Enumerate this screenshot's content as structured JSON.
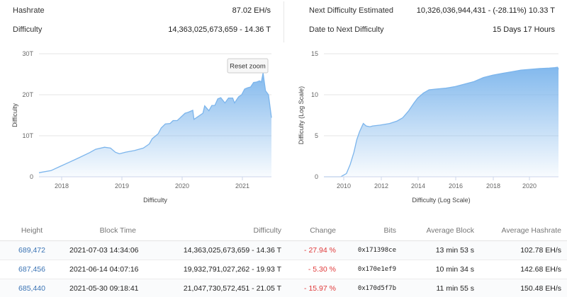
{
  "stats": {
    "hashrate_label": "Hashrate",
    "hashrate_value": "87.02 EH/s",
    "difficulty_label": "Difficulty",
    "difficulty_value": "14,363,025,673,659 - 14.36 T",
    "next_diff_label": "Next Difficulty Estimated",
    "next_diff_value": "10,326,036,944,431 - (-28.11%) 10.33 T",
    "date_next_label": "Date to Next Difficulty",
    "date_next_value": "15 Days 17 Hours"
  },
  "left_chart": {
    "reset_zoom_label": "Reset zoom"
  },
  "chart_data": [
    {
      "type": "area",
      "title": "",
      "xlabel": "Difficulty",
      "ylabel": "Difficulty",
      "x_ticks": [
        "2018",
        "2019",
        "2020",
        "2021"
      ],
      "y_ticks": [
        "0",
        "10T",
        "20T",
        "30T"
      ],
      "ylim": [
        0,
        30
      ],
      "xlim": [
        2017.6,
        2021.5
      ],
      "grid": true,
      "series": [
        {
          "x": [
            2017.6,
            2017.8,
            2017.95,
            2018.1,
            2018.25,
            2018.45,
            2018.55,
            2018.7,
            2018.8,
            2018.88,
            2018.95,
            2019.05,
            2019.2,
            2019.35,
            2019.45,
            2019.5,
            2019.6,
            2019.65,
            2019.72,
            2019.8,
            2019.85,
            2019.92,
            2020.05,
            2020.1,
            2020.18,
            2020.2,
            2020.28,
            2020.35,
            2020.38,
            2020.45,
            2020.5,
            2020.55,
            2020.6,
            2020.65,
            2020.72,
            2020.78,
            2020.85,
            2020.88,
            2020.95,
            2021.0,
            2021.05,
            2021.1,
            2021.15,
            2021.2,
            2021.25,
            2021.3,
            2021.33,
            2021.36,
            2021.4,
            2021.45,
            2021.5
          ],
          "y": [
            1.0,
            1.5,
            2.5,
            3.5,
            4.5,
            5.9,
            6.7,
            7.2,
            7.0,
            6.0,
            5.6,
            6.0,
            6.4,
            7.0,
            8.0,
            9.3,
            10.5,
            11.9,
            12.9,
            13.0,
            13.7,
            13.7,
            15.5,
            15.7,
            16.2,
            14.0,
            14.8,
            15.5,
            17.3,
            16.1,
            17.4,
            17.4,
            19.0,
            19.3,
            18.0,
            19.2,
            19.2,
            18.0,
            19.5,
            20.0,
            21.4,
            21.7,
            21.9,
            23.0,
            23.1,
            23.4,
            23.1,
            25.3,
            21.0,
            20.0,
            14.4
          ]
        }
      ]
    },
    {
      "type": "area",
      "title": "",
      "xlabel": "Difficulty (Log Scale)",
      "ylabel": "Difficulty (Log Scale)",
      "x_ticks": [
        "2010",
        "2012",
        "2014",
        "2016",
        "2018",
        "2020"
      ],
      "y_ticks": [
        "0",
        "5",
        "10",
        "15"
      ],
      "ylim": [
        0,
        15
      ],
      "xlim": [
        2009.0,
        2021.5
      ],
      "grid": true,
      "series": [
        {
          "x": [
            2009.0,
            2009.9,
            2010.2,
            2010.4,
            2010.6,
            2010.75,
            2010.9,
            2011.1,
            2011.25,
            2011.45,
            2011.6,
            2012.0,
            2012.5,
            2012.9,
            2013.2,
            2013.5,
            2013.8,
            2014.0,
            2014.3,
            2014.6,
            2015.0,
            2015.5,
            2016.0,
            2016.5,
            2017.0,
            2017.5,
            2018.0,
            2018.5,
            2019.0,
            2019.5,
            2020.0,
            2020.5,
            2021.0,
            2021.3,
            2021.45,
            2021.5
          ],
          "y": [
            0.0,
            0.0,
            0.4,
            1.5,
            3.0,
            4.5,
            5.5,
            6.5,
            6.2,
            6.1,
            6.2,
            6.3,
            6.5,
            6.8,
            7.2,
            8.0,
            9.0,
            9.6,
            10.2,
            10.6,
            10.7,
            10.8,
            11.0,
            11.3,
            11.6,
            12.1,
            12.4,
            12.6,
            12.8,
            13.0,
            13.1,
            13.2,
            13.25,
            13.3,
            13.35,
            13.1
          ]
        }
      ]
    }
  ],
  "table": {
    "headers": [
      "Height",
      "Block Time",
      "Difficulty",
      "Change",
      "Bits",
      "Average Block",
      "Average Hashrate"
    ],
    "rows": [
      [
        "689,472",
        "2021-07-03 14:34:06",
        "14,363,025,673,659 - 14.36 T",
        "- 27.94 %",
        "0x171398ce",
        "13 min 53 s",
        "102.78 EH/s"
      ],
      [
        "687,456",
        "2021-06-14 04:07:16",
        "19,932,791,027,262 - 19.93 T",
        "- 5.30 %",
        "0x170e1ef9",
        "10 min 34 s",
        "142.68 EH/s"
      ],
      [
        "685,440",
        "2021-05-30 09:18:41",
        "21,047,730,572,451 - 21.05 T",
        "- 15.97 %",
        "0x170d5f7b",
        "11 min 55 s",
        "150.48 EH/s"
      ]
    ]
  },
  "colors": {
    "area_top": "#7cb5ec",
    "link": "#3a73b4",
    "negative": "#e03a3a"
  }
}
